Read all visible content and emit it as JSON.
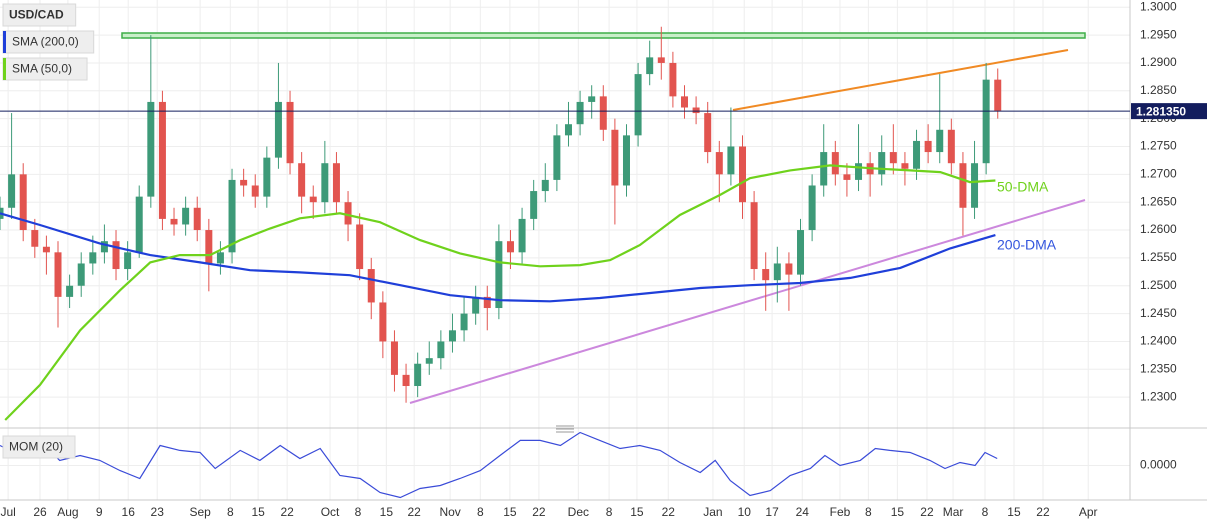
{
  "chart_data": [
    {
      "type": "candlestick",
      "title": "USD/CAD",
      "up_color": "#3d9a78",
      "down_color": "#e2544f",
      "xlim": [
        0,
        194.8
      ],
      "ylim": [
        1.225,
        1.3013
      ],
      "grid": true,
      "yticks": [
        {
          "value": 1.23,
          "label": "1.2300"
        },
        {
          "value": 1.235,
          "label": "1.2350"
        },
        {
          "value": 1.24,
          "label": "1.2400"
        },
        {
          "value": 1.245,
          "label": "1.2450"
        },
        {
          "value": 1.25,
          "label": "1.2500"
        },
        {
          "value": 1.255,
          "label": "1.2550"
        },
        {
          "value": 1.26,
          "label": "1.2600"
        },
        {
          "value": 1.265,
          "label": "1.2650"
        },
        {
          "value": 1.27,
          "label": "1.2700"
        },
        {
          "value": 1.275,
          "label": "1.2750"
        },
        {
          "value": 1.28,
          "label": "1.2800"
        },
        {
          "value": 1.285,
          "label": "1.2850"
        },
        {
          "value": 1.29,
          "label": "1.2900"
        },
        {
          "value": 1.295,
          "label": "1.2950"
        },
        {
          "value": 1.3,
          "label": "1.3000"
        }
      ],
      "x": [
        0,
        2,
        4,
        6,
        8,
        10,
        12,
        14,
        16,
        18,
        20,
        22,
        24,
        26,
        28,
        30,
        32,
        34,
        36,
        38,
        40,
        42,
        44,
        46,
        48,
        50,
        52,
        54,
        56,
        58,
        60,
        62,
        64,
        66,
        68,
        70,
        72,
        74,
        76,
        78,
        80,
        82,
        84,
        86,
        88,
        90,
        92,
        94,
        96,
        98,
        100,
        102,
        104,
        106,
        108,
        110,
        112,
        114,
        116,
        118,
        120,
        122,
        124,
        126,
        128,
        130,
        132,
        134,
        136,
        138,
        140,
        142,
        144,
        146,
        148,
        150,
        152,
        154,
        156,
        158,
        160,
        162,
        164,
        166,
        168,
        170,
        172
      ],
      "open": [
        1.262,
        1.264,
        1.27,
        1.26,
        1.257,
        1.256,
        1.248,
        1.25,
        1.254,
        1.256,
        1.258,
        1.253,
        1.256,
        1.266,
        1.283,
        1.262,
        1.261,
        1.264,
        1.26,
        1.254,
        1.256,
        1.269,
        1.268,
        1.266,
        1.273,
        1.283,
        1.272,
        1.266,
        1.265,
        1.272,
        1.265,
        1.261,
        1.253,
        1.247,
        1.24,
        1.234,
        1.232,
        1.236,
        1.237,
        1.24,
        1.242,
        1.245,
        1.248,
        1.246,
        1.258,
        1.256,
        1.262,
        1.267,
        1.269,
        1.277,
        1.279,
        1.283,
        1.284,
        1.278,
        1.268,
        1.277,
        1.288,
        1.291,
        1.29,
        1.284,
        1.282,
        1.281,
        1.274,
        1.27,
        1.275,
        1.265,
        1.253,
        1.251,
        1.254,
        1.252,
        1.26,
        1.268,
        1.274,
        1.27,
        1.269,
        1.272,
        1.27,
        1.274,
        1.272,
        1.271,
        1.276,
        1.274,
        1.278,
        1.272,
        1.264,
        1.272,
        1.287
      ],
      "high": [
        1.266,
        1.281,
        1.272,
        1.262,
        1.259,
        1.258,
        1.252,
        1.256,
        1.259,
        1.261,
        1.26,
        1.258,
        1.268,
        1.295,
        1.285,
        1.264,
        1.266,
        1.266,
        1.262,
        1.258,
        1.271,
        1.271,
        1.27,
        1.275,
        1.29,
        1.285,
        1.274,
        1.268,
        1.276,
        1.274,
        1.267,
        1.263,
        1.255,
        1.249,
        1.242,
        1.236,
        1.238,
        1.24,
        1.242,
        1.245,
        1.248,
        1.25,
        1.25,
        1.261,
        1.26,
        1.264,
        1.269,
        1.272,
        1.279,
        1.283,
        1.285,
        1.286,
        1.286,
        1.28,
        1.279,
        1.29,
        1.294,
        1.2965,
        1.292,
        1.286,
        1.284,
        1.283,
        1.276,
        1.282,
        1.277,
        1.267,
        1.256,
        1.257,
        1.256,
        1.262,
        1.27,
        1.279,
        1.276,
        1.272,
        1.279,
        1.274,
        1.277,
        1.279,
        1.274,
        1.278,
        1.279,
        1.288,
        1.28,
        1.274,
        1.276,
        1.29,
        1.289
      ],
      "low": [
        1.26,
        1.262,
        1.258,
        1.255,
        1.252,
        1.2425,
        1.246,
        1.248,
        1.252,
        1.254,
        1.251,
        1.251,
        1.255,
        1.264,
        1.26,
        1.259,
        1.259,
        1.258,
        1.249,
        1.252,
        1.254,
        1.266,
        1.264,
        1.264,
        1.271,
        1.27,
        1.263,
        1.262,
        1.263,
        1.263,
        1.258,
        1.251,
        1.244,
        1.237,
        1.231,
        1.229,
        1.23,
        1.234,
        1.235,
        1.238,
        1.24,
        1.243,
        1.242,
        1.244,
        1.253,
        1.254,
        1.26,
        1.265,
        1.267,
        1.275,
        1.277,
        1.28,
        1.276,
        1.261,
        1.266,
        1.275,
        1.286,
        1.287,
        1.282,
        1.28,
        1.279,
        1.272,
        1.265,
        1.268,
        1.262,
        1.251,
        1.2455,
        1.247,
        1.2455,
        1.25,
        1.258,
        1.266,
        1.268,
        1.266,
        1.267,
        1.266,
        1.268,
        1.27,
        1.268,
        1.269,
        1.272,
        1.272,
        1.27,
        1.259,
        1.262,
        1.27,
        1.28
      ],
      "close": [
        1.264,
        1.27,
        1.26,
        1.257,
        1.256,
        1.248,
        1.25,
        1.254,
        1.256,
        1.258,
        1.253,
        1.256,
        1.266,
        1.283,
        1.262,
        1.261,
        1.264,
        1.26,
        1.254,
        1.256,
        1.269,
        1.268,
        1.266,
        1.273,
        1.283,
        1.272,
        1.266,
        1.265,
        1.272,
        1.265,
        1.261,
        1.253,
        1.247,
        1.24,
        1.234,
        1.232,
        1.236,
        1.237,
        1.24,
        1.242,
        1.245,
        1.248,
        1.246,
        1.258,
        1.256,
        1.262,
        1.267,
        1.269,
        1.277,
        1.279,
        1.283,
        1.284,
        1.278,
        1.268,
        1.277,
        1.288,
        1.291,
        1.29,
        1.284,
        1.282,
        1.281,
        1.274,
        1.27,
        1.275,
        1.265,
        1.253,
        1.251,
        1.254,
        1.252,
        1.26,
        1.268,
        1.274,
        1.27,
        1.269,
        1.272,
        1.27,
        1.274,
        1.272,
        1.271,
        1.276,
        1.274,
        1.278,
        1.272,
        1.264,
        1.272,
        1.287,
        1.2814
      ],
      "series": [
        {
          "name": "SMA (200,0)",
          "color": "#1f3fd9",
          "x": [
            0,
            6.9,
            17.2,
            25.9,
            34.5,
            43.1,
            51.7,
            60.3,
            69,
            77.6,
            86.2,
            94.8,
            103.4,
            112.1,
            120.7,
            129.3,
            137.9,
            146.6,
            155.2,
            163.8,
            171.6
          ],
          "values": [
            1.263,
            1.2609,
            1.2576,
            1.2555,
            1.2542,
            1.2528,
            1.2524,
            1.2519,
            1.2501,
            1.2483,
            1.2474,
            1.2472,
            1.2478,
            1.2487,
            1.2496,
            1.2501,
            1.2505,
            1.2514,
            1.2532,
            1.2567,
            1.2591
          ]
        },
        {
          "name": "SMA (50,0)",
          "color": "#6fd21c",
          "x": [
            0.9,
            6.9,
            13.8,
            20.7,
            25.9,
            31,
            36.2,
            41.4,
            46.6,
            51.7,
            58.6,
            65.5,
            72.4,
            79.3,
            86.2,
            93.1,
            100,
            105.2,
            110.3,
            117.2,
            124.1,
            129.3,
            136.2,
            143.1,
            150,
            156.9,
            162.1,
            167.2,
            171.6
          ],
          "values": [
            1.2259,
            1.2322,
            1.242,
            1.2492,
            1.2542,
            1.2555,
            1.2555,
            1.2582,
            1.2603,
            1.2621,
            1.263,
            1.2614,
            1.2582,
            1.2558,
            1.2542,
            1.2535,
            1.2537,
            1.2546,
            1.2573,
            1.2627,
            1.2663,
            1.2693,
            1.2707,
            1.2716,
            1.2711,
            1.2707,
            1.2704,
            1.2686,
            1.2689
          ]
        }
      ],
      "last_price": {
        "value": 1.28135,
        "label": "1.281350"
      },
      "annotations": [
        "50-DMA",
        "200-DMA"
      ]
    },
    {
      "type": "line",
      "xlim": [
        0,
        194.8
      ],
      "ylim": [
        -0.03,
        0.03
      ],
      "grid": true,
      "yticks": [
        {
          "value": 0,
          "label": "0.0000"
        }
      ],
      "xticks": [
        {
          "value": 1.4,
          "label": "Jul"
        },
        {
          "value": 6.9,
          "label": "26"
        },
        {
          "value": 11.7,
          "label": "Aug"
        },
        {
          "value": 17.1,
          "label": "9"
        },
        {
          "value": 22.1,
          "label": "16"
        },
        {
          "value": 27.1,
          "label": "23"
        },
        {
          "value": 34.5,
          "label": "Sep"
        },
        {
          "value": 39.7,
          "label": "8"
        },
        {
          "value": 44.5,
          "label": "15"
        },
        {
          "value": 49.5,
          "label": "22"
        },
        {
          "value": 56.9,
          "label": "Oct"
        },
        {
          "value": 61.7,
          "label": "8"
        },
        {
          "value": 66.6,
          "label": "15"
        },
        {
          "value": 71.4,
          "label": "22"
        },
        {
          "value": 77.6,
          "label": "Nov"
        },
        {
          "value": 82.8,
          "label": "8"
        },
        {
          "value": 87.9,
          "label": "15"
        },
        {
          "value": 92.9,
          "label": "22"
        },
        {
          "value": 99.7,
          "label": "Dec"
        },
        {
          "value": 105,
          "label": "8"
        },
        {
          "value": 109.8,
          "label": "15"
        },
        {
          "value": 115.2,
          "label": "22"
        },
        {
          "value": 122.9,
          "label": "Jan"
        },
        {
          "value": 128.3,
          "label": "10"
        },
        {
          "value": 133.1,
          "label": "17"
        },
        {
          "value": 138.3,
          "label": "24"
        },
        {
          "value": 144.8,
          "label": "Feb"
        },
        {
          "value": 149.7,
          "label": "8"
        },
        {
          "value": 154.7,
          "label": "15"
        },
        {
          "value": 159.8,
          "label": "22"
        },
        {
          "value": 164.3,
          "label": "Mar"
        },
        {
          "value": 169.8,
          "label": "8"
        },
        {
          "value": 174.8,
          "label": "15"
        },
        {
          "value": 179.8,
          "label": "22"
        },
        {
          "value": 187.6,
          "label": "Apr"
        }
      ],
      "series": [
        {
          "name": "MOM (20)",
          "color": "#3a4bd8",
          "x": [
            0,
            3.4,
            6.9,
            10.3,
            13.8,
            17.2,
            20.7,
            24.1,
            27.6,
            31,
            34.5,
            37.1,
            41.4,
            44.8,
            48.3,
            51.7,
            55.2,
            58.6,
            62.1,
            65.5,
            69,
            72.4,
            75.9,
            79.3,
            82.8,
            86.2,
            89.7,
            93.1,
            96.6,
            100,
            103.4,
            106.9,
            110.3,
            113.8,
            117.2,
            120.7,
            123.3,
            125.9,
            129.3,
            132.8,
            136.2,
            139.7,
            142.2,
            144.8,
            148.3,
            150.9,
            153.4,
            156.9,
            160.3,
            162.9,
            165.5,
            168.1,
            169.8,
            171.9
          ],
          "values": [
            0.0174,
            0.0087,
            0.0218,
            0.0044,
            0.0087,
            0.0044,
            -0.0044,
            -0.0113,
            0.0174,
            0.0131,
            0.0113,
            -0.0026,
            0.0131,
            0.0044,
            0.0174,
            0.0061,
            0.0148,
            -0.0087,
            -0.0113,
            -0.0235,
            -0.0278,
            -0.02,
            -0.0174,
            -0.0113,
            -0.0044,
            0.0087,
            0.0218,
            0.0218,
            0.0174,
            0.0287,
            0.0218,
            0.0148,
            0.0174,
            0.0131,
            0.0026,
            -0.0061,
            0.0044,
            -0.0131,
            -0.0261,
            -0.0218,
            -0.0087,
            -0.0026,
            0.0087,
            0,
            0.0044,
            0.0148,
            0.0131,
            0.0113,
            0.0044,
            -0.0026,
            0.0026,
            0,
            0.0113,
            0.0061
          ]
        }
      ]
    }
  ]
}
